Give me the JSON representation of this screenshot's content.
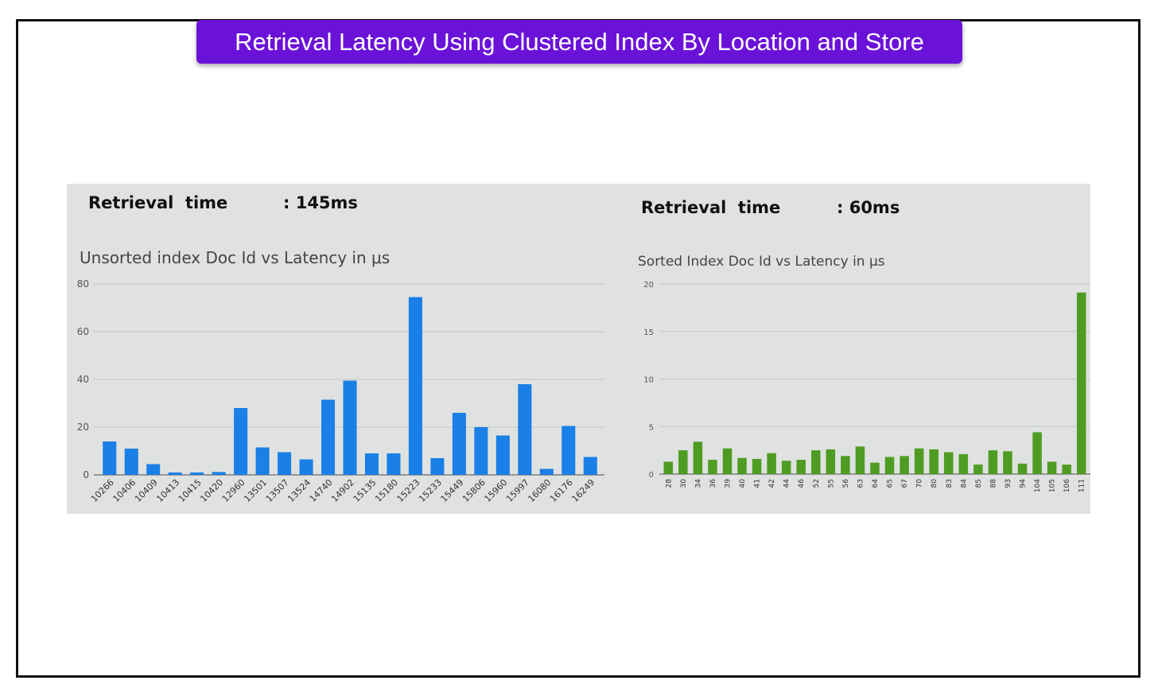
{
  "slide_title": "Retrieval Latency Using Clustered Index By Location and Store",
  "colors": {
    "banner": "#6b12d9",
    "panel_bg": "#dfe2e0",
    "unsorted_bar": "#1a7fe6",
    "sorted_bar": "#4f9c22"
  },
  "left_panel": {
    "retrieval_label": "Retrieval  time",
    "retrieval_value": ": 145ms"
  },
  "right_panel": {
    "retrieval_label": "Retrieval  time",
    "retrieval_value": ": 60ms"
  },
  "chart_data": [
    {
      "type": "bar",
      "title": "Unsorted index Doc Id vs Latency in μs",
      "categories": [
        "10266",
        "10406",
        "10409",
        "10413",
        "10415",
        "10420",
        "12960",
        "13501",
        "13507",
        "13524",
        "14740",
        "14902",
        "15135",
        "15180",
        "15223",
        "15233",
        "15449",
        "15806",
        "15960",
        "15997",
        "16080",
        "16176",
        "16249"
      ],
      "values": [
        14,
        11,
        4.5,
        1,
        1,
        1.2,
        28,
        11.5,
        9.5,
        6.5,
        31.5,
        39.5,
        9,
        9,
        74.5,
        7,
        26,
        20,
        16.5,
        38,
        2.5,
        20.5,
        7.5
      ],
      "ylim": [
        0,
        80
      ],
      "yticks": [
        "0",
        "20",
        "40",
        "60",
        "80"
      ],
      "xlabel": "",
      "ylabel": "",
      "grid": true
    },
    {
      "type": "bar",
      "title": "Sorted Index Doc Id vs Latency in μs",
      "categories": [
        "28",
        "30",
        "34",
        "36",
        "39",
        "40",
        "41",
        "42",
        "44",
        "46",
        "52",
        "55",
        "56",
        "63",
        "64",
        "65",
        "67",
        "70",
        "80",
        "83",
        "84",
        "85",
        "88",
        "93",
        "94",
        "104",
        "105",
        "106",
        "111"
      ],
      "values": [
        1.3,
        2.5,
        3.4,
        1.5,
        2.7,
        1.7,
        1.6,
        2.2,
        1.4,
        1.5,
        2.5,
        2.6,
        1.9,
        2.9,
        1.2,
        1.8,
        1.9,
        2.7,
        2.6,
        2.3,
        2.1,
        1.0,
        2.5,
        2.4,
        1.1,
        4.4,
        1.3,
        1.0,
        19.1
      ],
      "ylim": [
        0,
        20
      ],
      "yticks": [
        "0",
        "5",
        "10",
        "15",
        "20"
      ],
      "xlabel": "",
      "ylabel": "",
      "grid": true
    }
  ]
}
